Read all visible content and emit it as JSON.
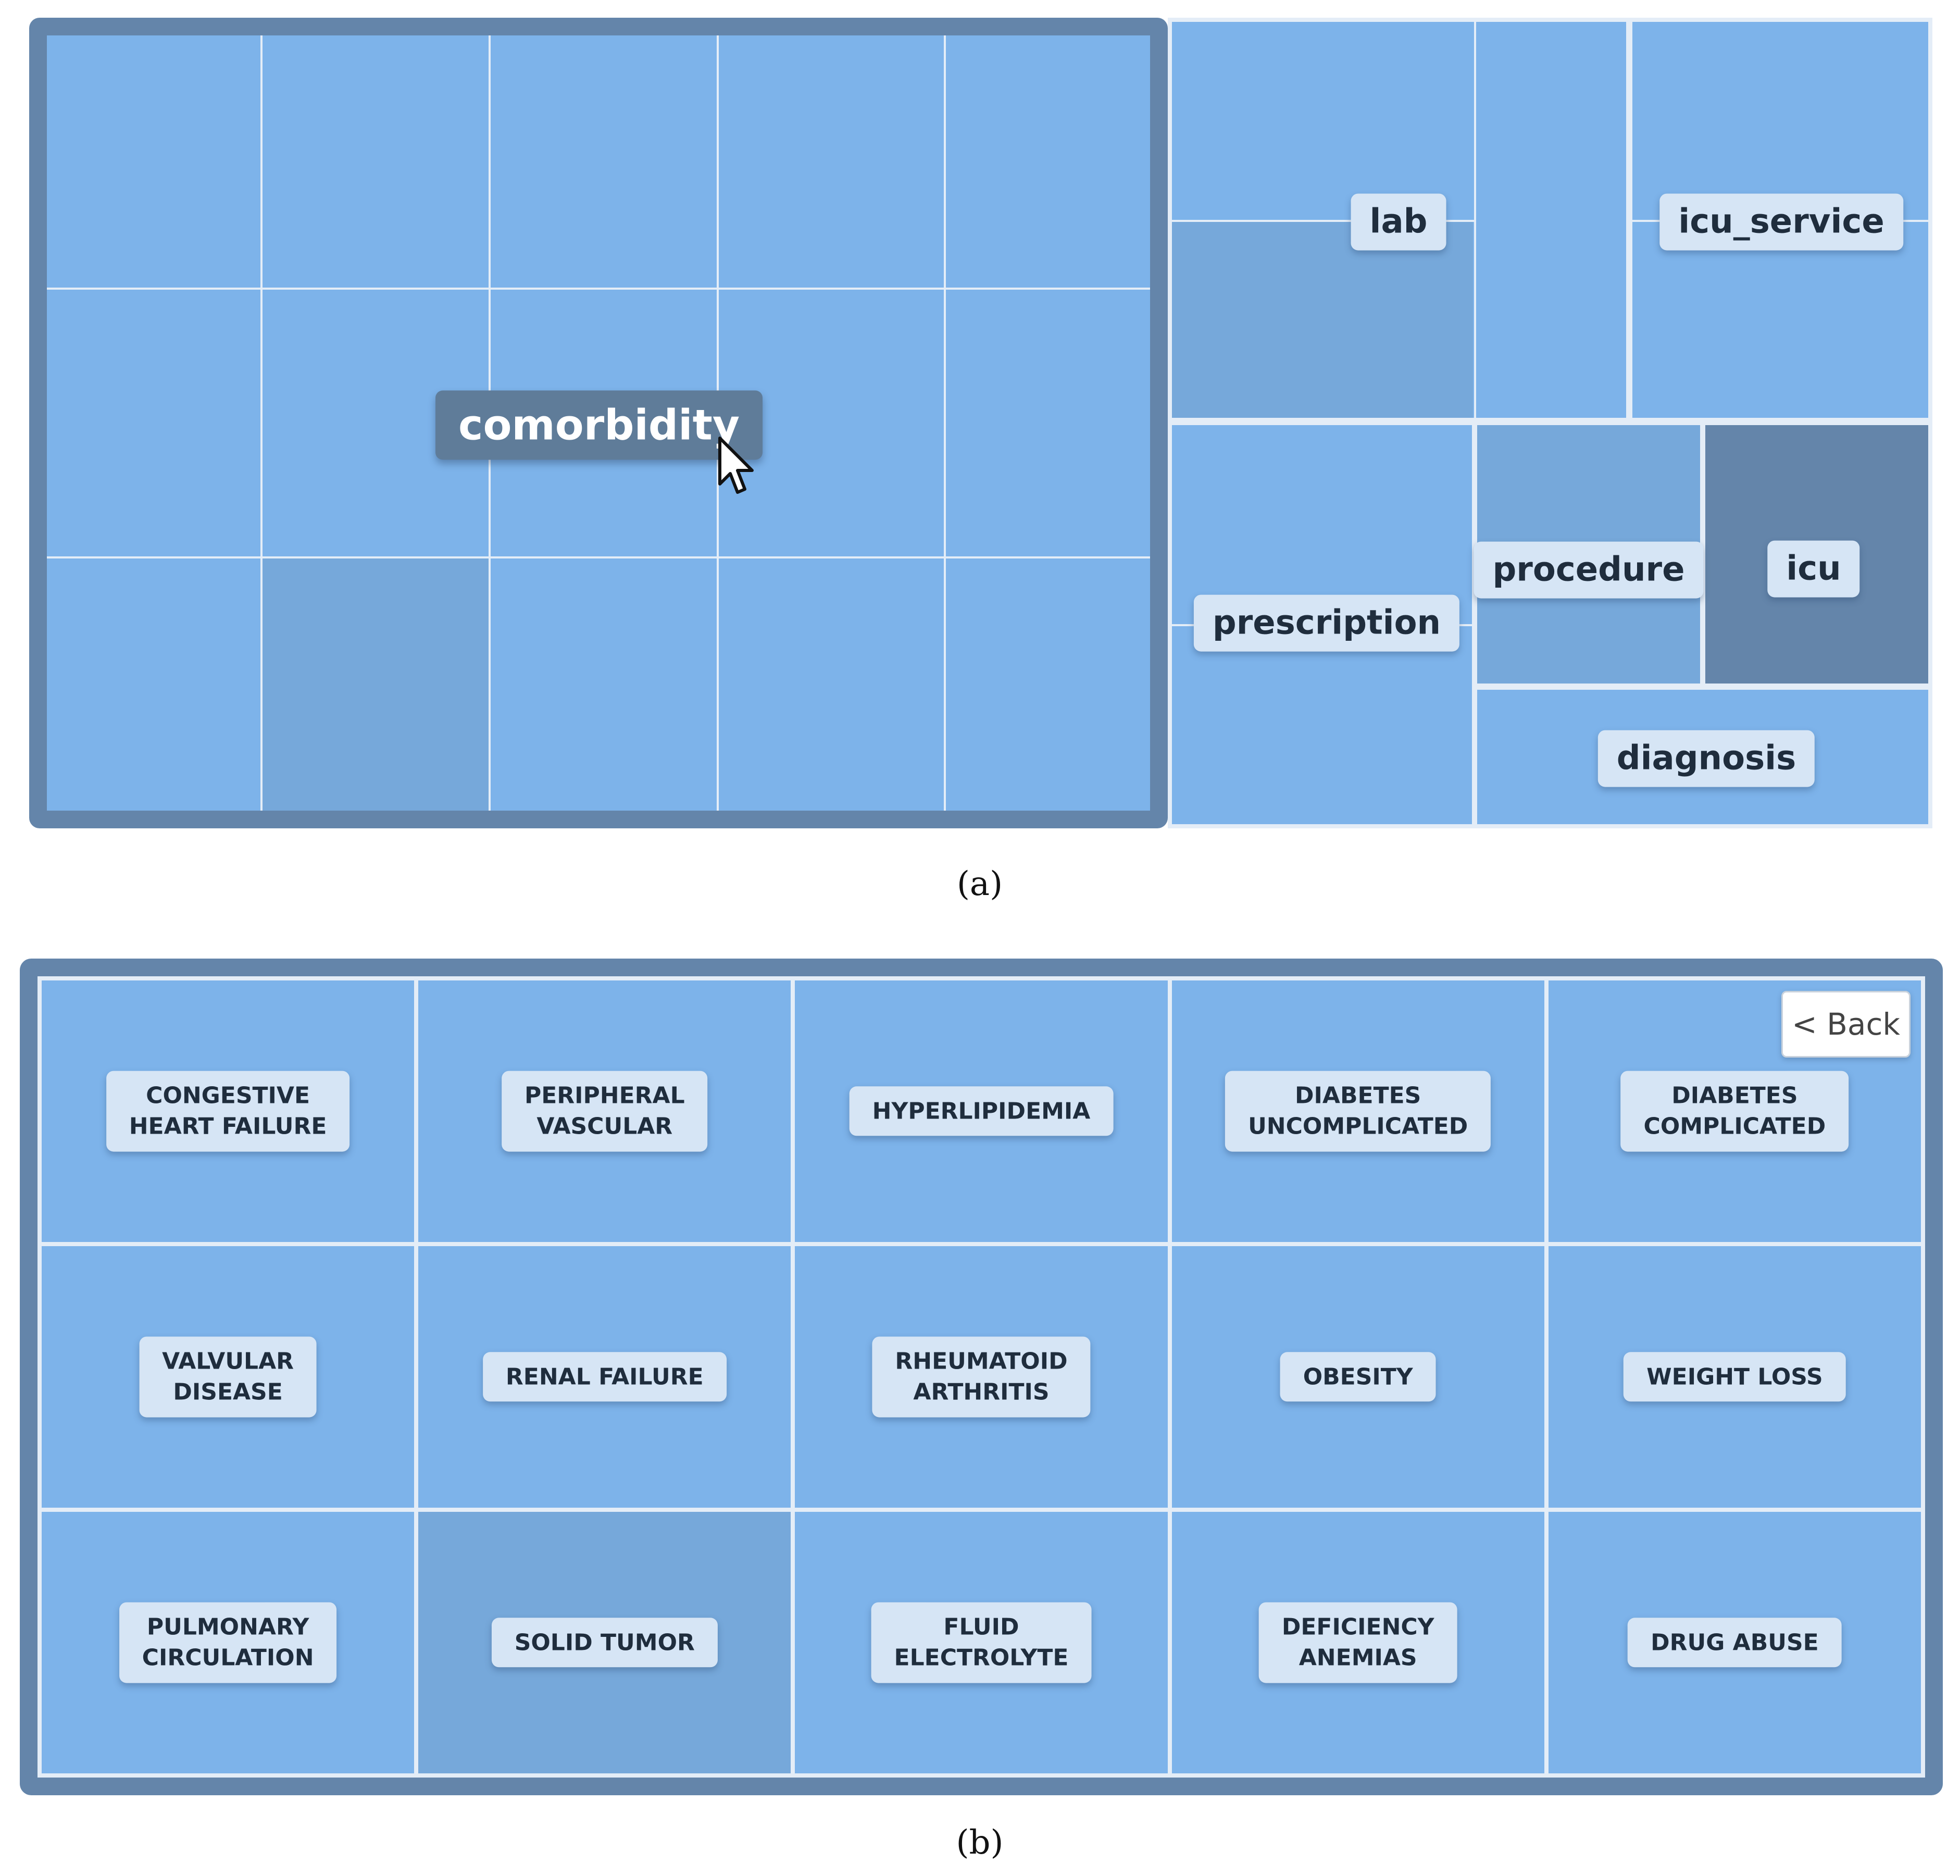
{
  "panel_a": {
    "focused_label": "comorbidity",
    "labels": {
      "lab": "lab",
      "icu_service": "icu_service",
      "prescription": "prescription",
      "procedure": "procedure",
      "icu": "icu",
      "diagnosis": "diagnosis"
    },
    "caption": "(a)"
  },
  "panel_b": {
    "back_label": "< Back",
    "cells": [
      [
        "CONGESTIVE",
        "HEART FAILURE"
      ],
      [
        "PERIPHERAL",
        "VASCULAR"
      ],
      [
        "HYPERLIPIDEMIA"
      ],
      [
        "DIABETES",
        "UNCOMPLICATED"
      ],
      [
        "DIABETES",
        "COMPLICATED"
      ],
      [
        "VALVULAR",
        "DISEASE"
      ],
      [
        "RENAL FAILURE"
      ],
      [
        "RHEUMATOID",
        "ARTHRITIS"
      ],
      [
        "OBESITY"
      ],
      [
        "WEIGHT LOSS"
      ],
      [
        "PULMONARY",
        "CIRCULATION"
      ],
      [
        "SOLID TUMOR"
      ],
      [
        "FLUID",
        "ELECTROLYTE"
      ],
      [
        "DEFICIENCY",
        "ANEMIAS"
      ],
      [
        "DRUG ABUSE"
      ]
    ],
    "caption": "(b)"
  },
  "colors": {
    "cell": "#7db3ea",
    "cell_dim": "#76a8da",
    "cell_dark": "#6485aa",
    "frame": "#6485aa",
    "tag": "#d6e5f5"
  },
  "icons": {
    "cursor": "mouse-pointer-icon"
  }
}
